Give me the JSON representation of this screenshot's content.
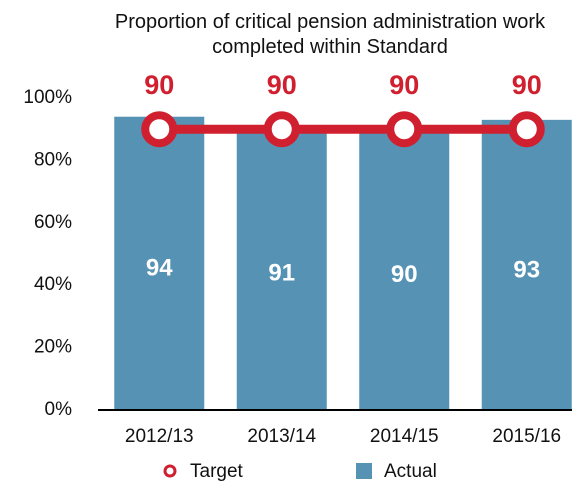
{
  "chart_data": {
    "type": "bar",
    "title": "Proportion of critical pension administration work completed within Standard",
    "categories": [
      "2012/13",
      "2013/14",
      "2014/15",
      "2015/16"
    ],
    "series": [
      {
        "name": "Target",
        "type": "line",
        "color": "#d0202f",
        "values": [
          90,
          90,
          90,
          90
        ]
      },
      {
        "name": "Actual",
        "type": "bar",
        "color": "#5592b4",
        "values": [
          94,
          91,
          90,
          93
        ]
      }
    ],
    "ylim": [
      0,
      100
    ],
    "yticks": [
      {
        "value": 0,
        "label": "0%"
      },
      {
        "value": 20,
        "label": "20%"
      },
      {
        "value": 40,
        "label": "40%"
      },
      {
        "value": 60,
        "label": "60%"
      },
      {
        "value": 80,
        "label": "80%"
      },
      {
        "value": 100,
        "label": "100%"
      }
    ],
    "grid": false,
    "legend": "bottom"
  }
}
